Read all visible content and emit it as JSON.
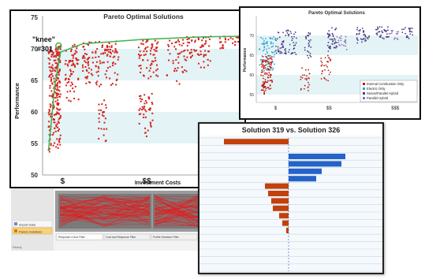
{
  "chart_data": [
    {
      "type": "scatter",
      "title": "Pareto Optimal Solutions",
      "xlabel": "Investment Costs",
      "ylabel": "Performance",
      "yticks": [
        50,
        55,
        60,
        65,
        70,
        75
      ],
      "ylim": [
        50,
        75
      ],
      "xticks": [
        "$",
        "$$"
      ],
      "annotation": {
        "text": "\"knee\"",
        "subtext": "#301",
        "y": 70.5
      },
      "frontier_color": "#3cb44b",
      "point_color": "#d9201a",
      "band_color": "#e3f3f6",
      "clusters": [
        {
          "x": [
            0.03,
            0.09
          ],
          "y": [
            53.5,
            70.5
          ],
          "n": 240
        },
        {
          "x": [
            0.11,
            0.18
          ],
          "y": [
            61,
            70.8
          ],
          "n": 70
        },
        {
          "x": [
            0.2,
            0.38
          ],
          "y": [
            64,
            71.2
          ],
          "n": 130
        },
        {
          "x": [
            0.28,
            0.32
          ],
          "y": [
            55,
            62
          ],
          "n": 25
        },
        {
          "x": [
            0.48,
            0.58
          ],
          "y": [
            65,
            71.5
          ],
          "n": 70
        },
        {
          "x": [
            0.48,
            0.55
          ],
          "y": [
            56,
            63
          ],
          "n": 45
        },
        {
          "x": [
            0.62,
            0.72
          ],
          "y": [
            64,
            71.5
          ],
          "n": 45
        },
        {
          "x": [
            0.72,
            0.84
          ],
          "y": [
            67,
            72
          ],
          "n": 60
        },
        {
          "x": [
            0.88,
            0.98
          ],
          "y": [
            70,
            72
          ],
          "n": 25
        }
      ],
      "frontier": [
        [
          0.03,
          54
        ],
        [
          0.06,
          64
        ],
        [
          0.09,
          69.5
        ],
        [
          0.2,
          70.8
        ],
        [
          0.5,
          71.5
        ],
        [
          0.8,
          71.9
        ],
        [
          1,
          72
        ]
      ]
    },
    {
      "type": "scatter",
      "title": "Pareto Optimal Solutions",
      "ylabel": "Performance",
      "yticks": [
        55,
        60,
        65,
        70
      ],
      "ylim": [
        53,
        75
      ],
      "xticks": [
        "$",
        "$$",
        "$$$"
      ],
      "legend_position": "bottom-right",
      "series": [
        {
          "name": "Internal Combustion Only",
          "color": "#c0180c",
          "clusters": [
            {
              "x": [
                0.03,
                0.1
              ],
              "y": [
                55,
                65
              ],
              "n": 120
            },
            {
              "x": [
                0.27,
                0.33
              ],
              "y": [
                56,
                62
              ],
              "n": 25
            },
            {
              "x": [
                0.4,
                0.46
              ],
              "y": [
                58,
                65
              ],
              "n": 30
            }
          ]
        },
        {
          "name": "Electric Only",
          "color": "#2aa3cf",
          "clusters": [
            {
              "x": [
                0.02,
                0.12
              ],
              "y": [
                61,
                70
              ],
              "n": 70
            }
          ]
        },
        {
          "name": "Series/Parallel Hybrid",
          "color": "#4c3a82",
          "clusters": [
            {
              "x": [
                0.12,
                0.25
              ],
              "y": [
                65,
                71.5
              ],
              "n": 70
            },
            {
              "x": [
                0.3,
                0.34
              ],
              "y": [
                64,
                71
              ],
              "n": 25
            },
            {
              "x": [
                0.44,
                0.5
              ],
              "y": [
                66,
                72
              ],
              "n": 45
            },
            {
              "x": [
                0.62,
                0.7
              ],
              "y": [
                68,
                72
              ],
              "n": 35
            },
            {
              "x": [
                0.74,
                0.82
              ],
              "y": [
                69,
                72.2
              ],
              "n": 35
            },
            {
              "x": [
                0.9,
                0.97
              ],
              "y": [
                69,
                72
              ],
              "n": 20
            }
          ]
        },
        {
          "name": "Parallel Hybrid",
          "color": "#8f6fb3",
          "clusters": [
            {
              "x": [
                0.5,
                0.56
              ],
              "y": [
                66,
                70
              ],
              "n": 20
            },
            {
              "x": [
                0.82,
                0.88
              ],
              "y": [
                69,
                71.5
              ],
              "n": 15
            }
          ]
        }
      ]
    },
    {
      "type": "bar",
      "orientation": "horizontal",
      "title": "Solution 319 vs. Solution 326",
      "values": [
        -0.82,
        0.0,
        0.72,
        0.67,
        0.42,
        0.35,
        -0.3,
        -0.26,
        -0.22,
        -0.2,
        -0.12,
        -0.08,
        -0.03,
        0.0,
        0.0,
        0.0,
        0.0,
        0.0
      ],
      "negative_color": "#c2410c",
      "positive_color": "#2563c7",
      "xlim": [
        -1,
        1
      ]
    }
  ],
  "app": {
    "window_tabs": [
      "Response Curve Filter",
      "Cost and Response Filter",
      "Profile Structure Filter"
    ],
    "nav_items": [
      "Import Data",
      "Pareto Solutions"
    ],
    "status_text": "Ready"
  }
}
